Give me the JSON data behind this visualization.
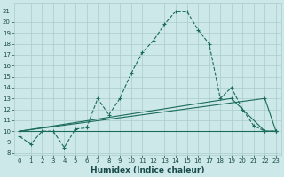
{
  "xlabel": "Humidex (Indice chaleur)",
  "bg_color": "#cce8e8",
  "grid_color": "#aacccc",
  "line_color": "#1a6b5a",
  "xlim": [
    -0.5,
    23.5
  ],
  "ylim": [
    7.8,
    21.8
  ],
  "xticks": [
    0,
    1,
    2,
    3,
    4,
    5,
    6,
    7,
    8,
    9,
    10,
    11,
    12,
    13,
    14,
    15,
    16,
    17,
    18,
    19,
    20,
    21,
    22,
    23
  ],
  "yticks": [
    8,
    9,
    10,
    11,
    12,
    13,
    14,
    15,
    16,
    17,
    18,
    19,
    20,
    21
  ],
  "curve1_x": [
    0,
    1,
    2,
    3,
    4,
    5,
    6,
    7,
    8,
    9,
    10,
    11,
    12,
    13,
    14,
    15,
    16,
    17,
    18,
    19,
    20,
    21,
    22,
    23
  ],
  "curve1_y": [
    9.5,
    8.8,
    10.0,
    10.0,
    8.5,
    10.2,
    10.3,
    13.0,
    11.5,
    13.0,
    15.3,
    17.2,
    18.3,
    19.8,
    21.0,
    21.0,
    19.3,
    18.0,
    13.0,
    14.0,
    12.0,
    10.5,
    10.0,
    10.0
  ],
  "curve2_x": [
    0,
    22,
    23
  ],
  "curve2_y": [
    10.0,
    13.0,
    10.0
  ],
  "curve3_x": [
    0,
    19,
    22,
    23
  ],
  "curve3_y": [
    10.0,
    13.0,
    10.0,
    10.0
  ],
  "curve4_x": [
    0,
    23
  ],
  "curve4_y": [
    10.0,
    10.0
  ],
  "xlabel_fontsize": 6.5,
  "tick_fontsize": 5
}
